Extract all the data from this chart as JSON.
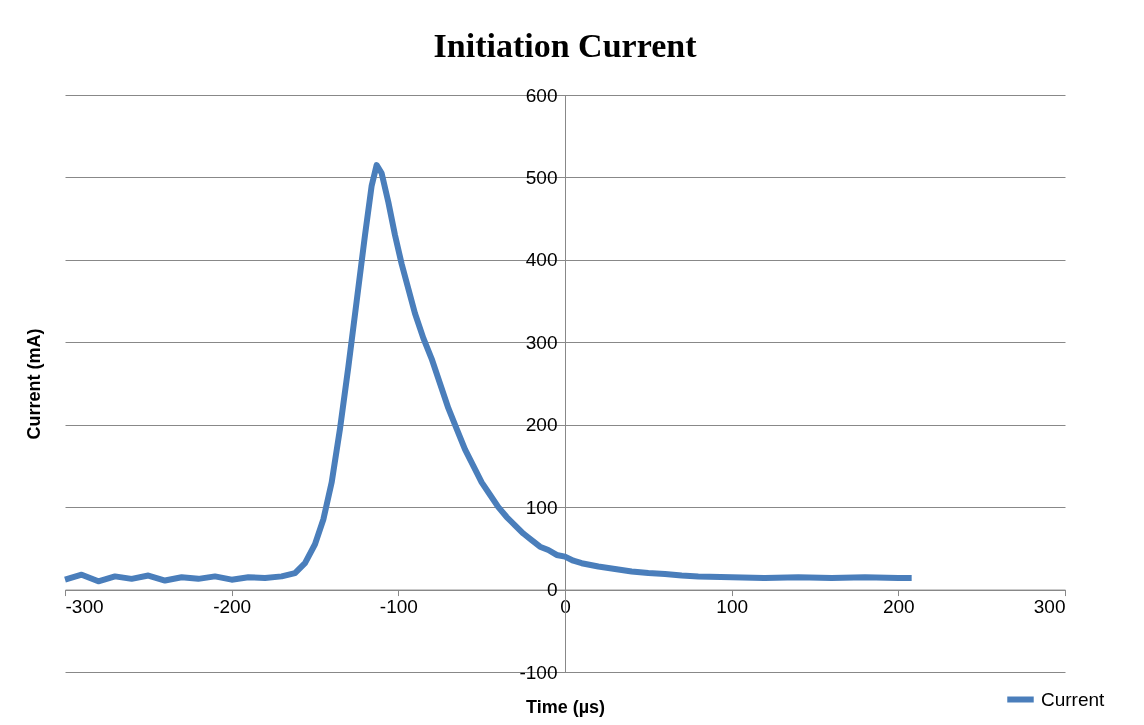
{
  "chart_data": {
    "type": "line",
    "title": "Initiation Current",
    "xlabel": "Time (µs)",
    "ylabel": "Current (mA)",
    "xlim": [
      -300,
      300
    ],
    "xticks": [
      -300,
      -200,
      -100,
      0,
      100,
      200,
      300
    ],
    "ylim": [
      -100,
      600
    ],
    "yticks": [
      -100,
      0,
      100,
      200,
      300,
      400,
      500,
      600
    ],
    "grid": "y",
    "legend": "bottom right",
    "marker": "none",
    "line_style": "solid",
    "x": [
      -300,
      -290,
      -280,
      -270,
      -260,
      -250,
      -240,
      -230,
      -220,
      -210,
      -200,
      -190,
      -180,
      -170,
      -162,
      -156,
      -150,
      -145,
      -140,
      -135,
      -130,
      -125,
      -120,
      -116,
      -113,
      -110,
      -106,
      -102,
      -98,
      -94,
      -90,
      -85,
      -80,
      -75,
      -70,
      -65,
      -60,
      -55,
      -50,
      -45,
      -40,
      -35,
      -30,
      -25,
      -20,
      -15,
      -10,
      -5,
      0,
      5,
      10,
      20,
      30,
      40,
      50,
      60,
      70,
      80,
      100,
      120,
      140,
      160,
      180,
      200,
      208
    ],
    "series": [
      {
        "name": "Current",
        "color": "#4a7ebb",
        "values": [
          12,
          18,
          10,
          16,
          13,
          17,
          11,
          15,
          13,
          16,
          12,
          15,
          14,
          16,
          20,
          32,
          55,
          85,
          130,
          195,
          270,
          350,
          430,
          490,
          515,
          505,
          470,
          430,
          395,
          365,
          335,
          305,
          280,
          250,
          220,
          195,
          170,
          150,
          130,
          115,
          100,
          88,
          78,
          68,
          60,
          52,
          48,
          42,
          40,
          35,
          32,
          28,
          25,
          22,
          20,
          19,
          17,
          16,
          15,
          14,
          15,
          14,
          15,
          14,
          14
        ]
      }
    ]
  }
}
